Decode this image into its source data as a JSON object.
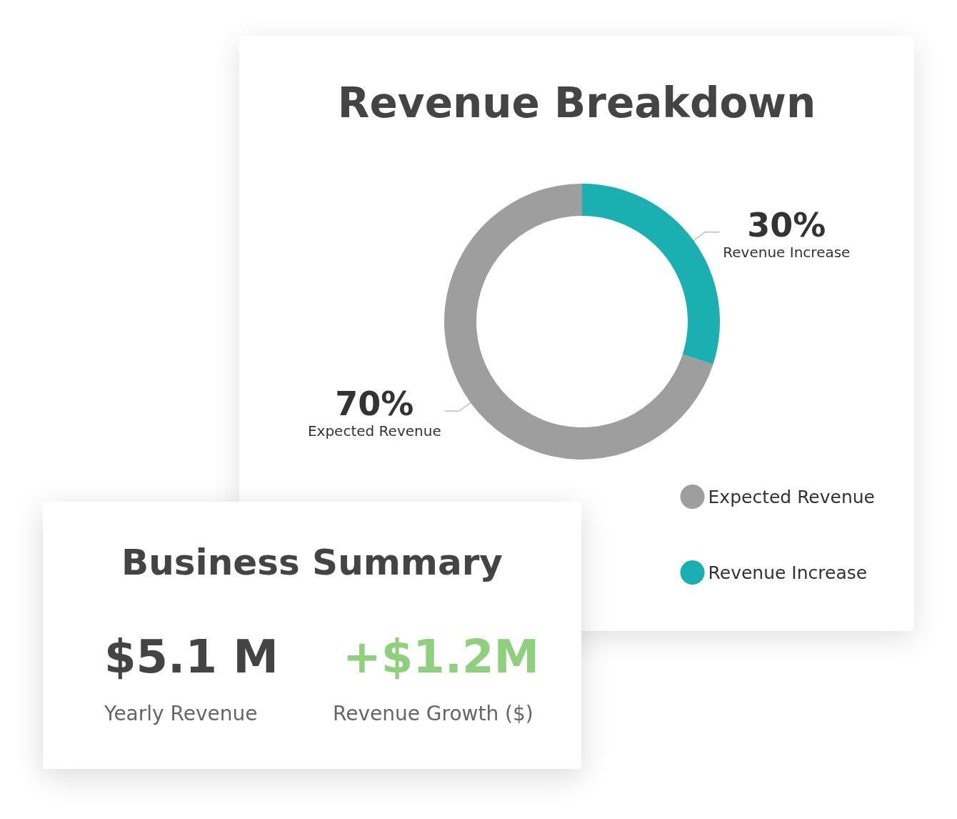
{
  "chart_data": [
    {
      "type": "donut",
      "title": "Revenue Breakdown",
      "categories": [
        "Expected Revenue",
        "Revenue Increase"
      ],
      "values": [
        70,
        30
      ],
      "colors": [
        "#9d9e9d",
        "#1aafb0"
      ],
      "value_labels": [
        "70%",
        "30%"
      ],
      "legend": "bottom right"
    },
    {
      "type": "other",
      "title": "Business Summary",
      "annotations": [
        "$5.1 M",
        "Yearly Revenue",
        "+$1.2M",
        "Revenue Growth ($)"
      ]
    }
  ]
}
